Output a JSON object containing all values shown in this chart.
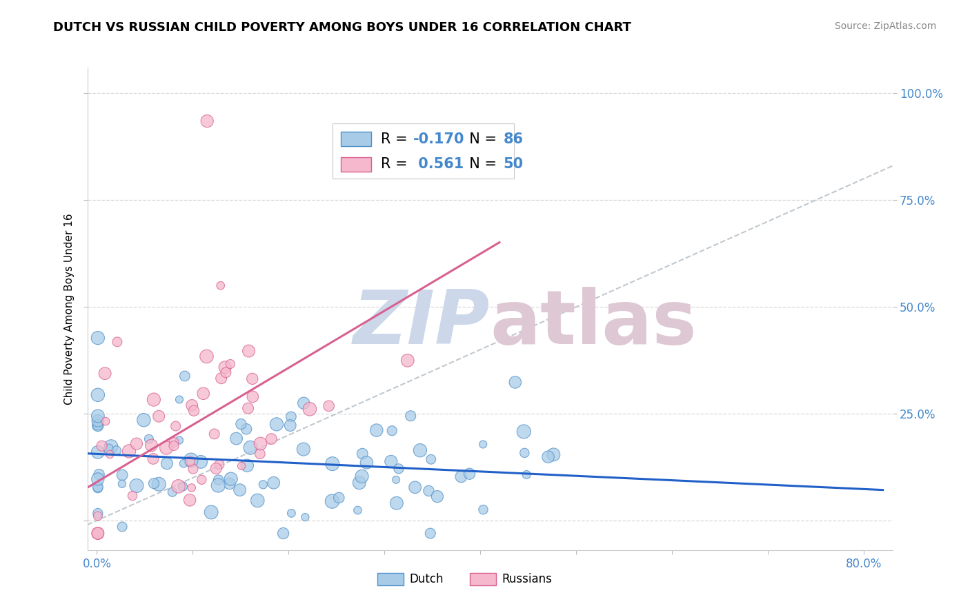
{
  "title": "DUTCH VS RUSSIAN CHILD POVERTY AMONG BOYS UNDER 16 CORRELATION CHART",
  "source": "Source: ZipAtlas.com",
  "ylabel": "Child Poverty Among Boys Under 16",
  "dutch_R": -0.17,
  "dutch_N": 86,
  "russian_R": 0.561,
  "russian_N": 50,
  "dutch_color": "#a8cce8",
  "russian_color": "#f5b8cc",
  "dutch_edge_color": "#5090c8",
  "russian_edge_color": "#d86090",
  "trend_dutch_color": "#2060c8",
  "trend_russian_color": "#d86090",
  "ref_color": "#c0c8d0",
  "grid_color": "#d8d8d8",
  "tick_color": "#4488cc",
  "title_fontsize": 13,
  "source_fontsize": 10,
  "ylabel_fontsize": 11,
  "tick_fontsize": 12,
  "legend_val_fontsize": 15
}
